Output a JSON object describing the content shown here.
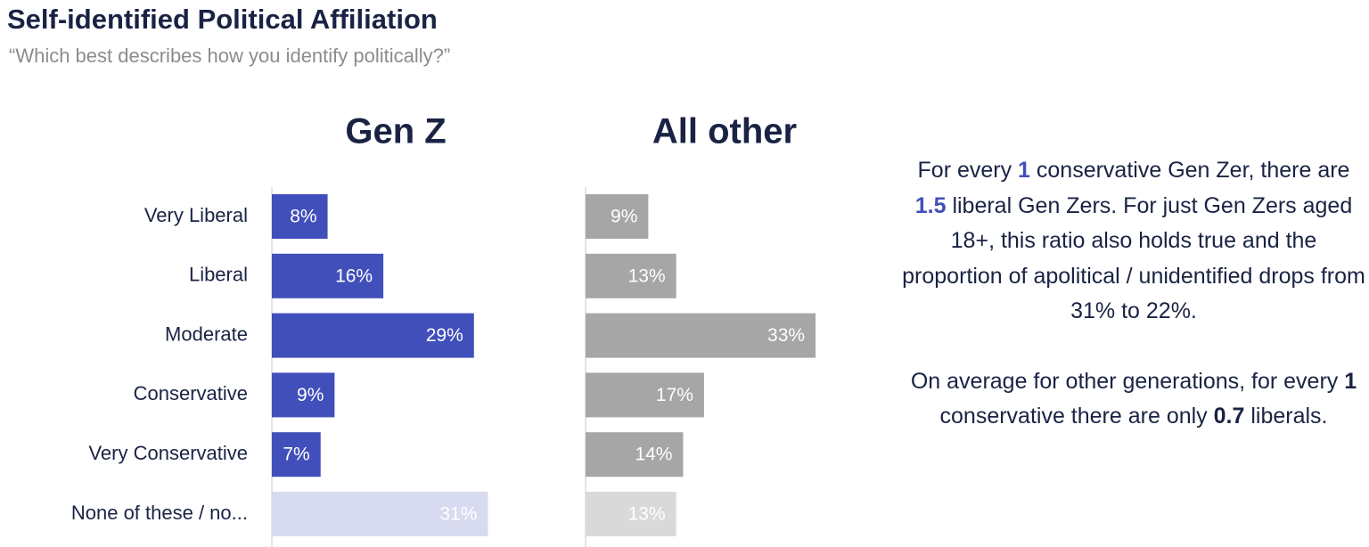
{
  "chart_data": {
    "type": "bar",
    "orientation": "horizontal",
    "title": "Self-identified Political Affiliation",
    "subtitle": "“Which best describes how you identify politically?”",
    "categories": [
      "Very Liberal",
      "Liberal",
      "Moderate",
      "Conservative",
      "Very Conservative",
      "None of these / no..."
    ],
    "series": [
      {
        "name": "Gen Z",
        "colors": [
          "#414fbb",
          "#414fbb",
          "#414fbb",
          "#414fbb",
          "#414fbb",
          "#d8daf0"
        ],
        "values": [
          8,
          16,
          29,
          9,
          7,
          31
        ],
        "value_labels": [
          "8%",
          "16%",
          "29%",
          "9%",
          "7%",
          "31%"
        ]
      },
      {
        "name": "All other",
        "colors": [
          "#a6a6a6",
          "#a6a6a6",
          "#a6a6a6",
          "#a6a6a6",
          "#a6a6a6",
          "#d9d9d9"
        ],
        "values": [
          9,
          13,
          33,
          17,
          14,
          13
        ],
        "value_labels": [
          "9%",
          "13%",
          "33%",
          "17%",
          "14%",
          "13%"
        ]
      }
    ],
    "annotation": {
      "paragraphs": [
        {
          "emphasis_color": "#414fbb",
          "segments": [
            "For every ",
            "1",
            " conservative Gen Zer, there are ",
            "1.5",
            " liberal Gen Zers.  For just Gen Zers aged 18+, this ratio also holds true and the proportion of apolitical / unidentified drops from 31% to 22%."
          ]
        },
        {
          "emphasis_color": "#1a2344",
          "segments": [
            "On average for other generations, for every ",
            "1",
            " conservative there are only ",
            "0.7",
            " liberals."
          ]
        }
      ]
    }
  }
}
